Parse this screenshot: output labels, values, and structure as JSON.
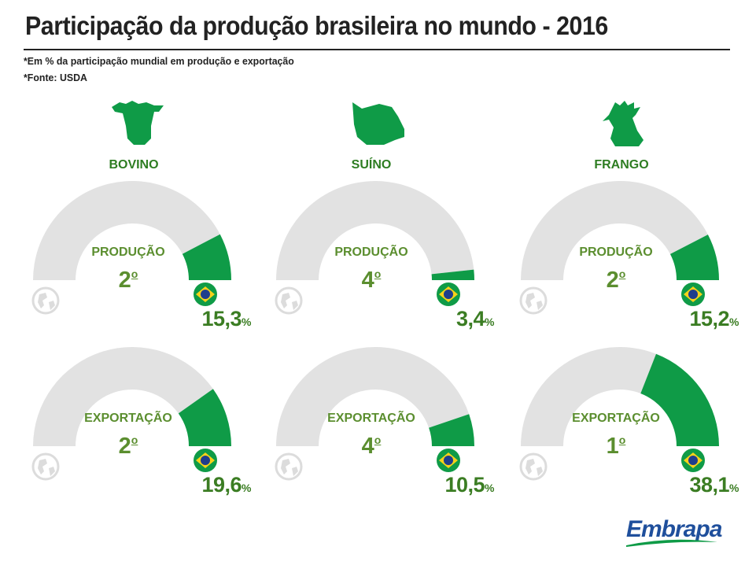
{
  "title": "Participação da produção brasileira no mundo - 2016",
  "subtitle_lines": [
    "*Em % da participação mundial em produção e exportação",
    "*Fonte: USDA"
  ],
  "icons": {
    "bovino": "cow-head-icon",
    "suino": "pig-head-icon",
    "frango": "rooster-head-icon",
    "world": "globe-icon",
    "brazil": "brazil-flag-icon"
  },
  "colors": {
    "green": "#0f9b47",
    "track": "#e2e2e2",
    "label_green": "#5b8e2f",
    "brand_blue": "#1f4f9c"
  },
  "brand": "Embrapa",
  "chart_data": [
    {
      "type": "gauge",
      "category": "BOVINO",
      "metric": "PRODUÇÃO",
      "rank": "2",
      "rank_suffix": "o",
      "value": 15.3,
      "value_label": "15,3",
      "unit": "%",
      "range": [
        0,
        100
      ]
    },
    {
      "type": "gauge",
      "category": "SUÍNO",
      "metric": "PRODUÇÃO",
      "rank": "4",
      "rank_suffix": "o",
      "value": 3.4,
      "value_label": "3,4",
      "unit": "%",
      "range": [
        0,
        100
      ]
    },
    {
      "type": "gauge",
      "category": "FRANGO",
      "metric": "PRODUÇÃO",
      "rank": "2",
      "rank_suffix": "o",
      "value": 15.2,
      "value_label": "15,2",
      "unit": "%",
      "range": [
        0,
        100
      ]
    },
    {
      "type": "gauge",
      "category": "BOVINO",
      "metric": "EXPORTAÇÃO",
      "rank": "2",
      "rank_suffix": "o",
      "value": 19.6,
      "value_label": "19,6",
      "unit": "%",
      "range": [
        0,
        100
      ]
    },
    {
      "type": "gauge",
      "category": "SUÍNO",
      "metric": "EXPORTAÇÃO",
      "rank": "4",
      "rank_suffix": "o",
      "value": 10.5,
      "value_label": "10,5",
      "unit": "%",
      "range": [
        0,
        100
      ]
    },
    {
      "type": "gauge",
      "category": "FRANGO",
      "metric": "EXPORTAÇÃO",
      "rank": "1",
      "rank_suffix": "o",
      "value": 38.1,
      "value_label": "38,1",
      "unit": "%",
      "range": [
        0,
        100
      ]
    }
  ]
}
